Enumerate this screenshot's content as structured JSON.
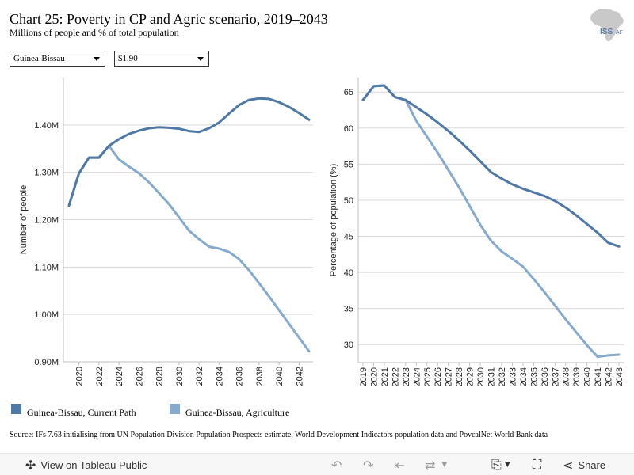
{
  "header": {
    "title": "Chart 25: Poverty in CP and Agric scenario, 2019–2043",
    "subtitle": "Millions of people and % of total population",
    "logo_text": "ISS",
    "logo_suffix": "AF"
  },
  "filters": {
    "country": "Guinea-Bissau",
    "poverty_line": "$1.90"
  },
  "colors": {
    "current_path": "#4e79a7",
    "agriculture": "#86aacd",
    "grid": "#d9d9d9"
  },
  "legend": {
    "current_path": "Guinea-Bissau, Current Path",
    "agriculture": "Guinea-Bissau, Agriculture"
  },
  "source": "Source: IFs 7.63 initialising from UN Population Division Population Prospects estimate, World Development Indicators population data and PovcalNet World Bank data",
  "toolbar": {
    "view_label": "View on Tableau Public",
    "share_label": "Share"
  },
  "chart_data": [
    {
      "type": "line",
      "ylabel": "Number of people",
      "ylim": [
        0.9,
        1.5
      ],
      "yticks": [
        0.9,
        1.0,
        1.1,
        1.2,
        1.3,
        1.4
      ],
      "ytick_labels": [
        "0.90M",
        "1.00M",
        "1.10M",
        "1.20M",
        "1.30M",
        "1.40M"
      ],
      "xticks": [
        "2020",
        "2022",
        "2024",
        "2026",
        "2028",
        "2030",
        "2032",
        "2034",
        "2036",
        "2038",
        "2040",
        "2042"
      ],
      "x": [
        2019,
        2020,
        2021,
        2022,
        2023,
        2024,
        2025,
        2026,
        2027,
        2028,
        2029,
        2030,
        2031,
        2032,
        2033,
        2034,
        2035,
        2036,
        2037,
        2038,
        2039,
        2040,
        2041,
        2042,
        2043
      ],
      "series": [
        {
          "name": "Guinea-Bissau, Current Path",
          "values": [
            1.23,
            1.298,
            1.331,
            1.331,
            1.356,
            1.37,
            1.381,
            1.388,
            1.393,
            1.395,
            1.394,
            1.392,
            1.387,
            1.385,
            1.393,
            1.405,
            1.424,
            1.442,
            1.453,
            1.456,
            1.455,
            1.448,
            1.438,
            1.425,
            1.411
          ]
        },
        {
          "name": "Guinea-Bissau, Agriculture",
          "values": [
            1.23,
            1.298,
            1.331,
            1.331,
            1.356,
            1.327,
            1.312,
            1.298,
            1.279,
            1.256,
            1.233,
            1.205,
            1.177,
            1.159,
            1.143,
            1.139,
            1.132,
            1.117,
            1.093,
            1.066,
            1.038,
            1.009,
            0.98,
            0.951,
            0.922
          ]
        }
      ]
    },
    {
      "type": "line",
      "ylabel": "Percentage of population (%)",
      "ylim": [
        27.5,
        67
      ],
      "yticks": [
        30,
        35,
        40,
        45,
        50,
        55,
        60,
        65
      ],
      "ytick_labels": [
        "30",
        "35",
        "40",
        "45",
        "50",
        "55",
        "60",
        "65"
      ],
      "xticks": [
        "2019",
        "2020",
        "2021",
        "2022",
        "2023",
        "2024",
        "2025",
        "2026",
        "2027",
        "2028",
        "2029",
        "2030",
        "2031",
        "2032",
        "2033",
        "2034",
        "2035",
        "2036",
        "2037",
        "2038",
        "2039",
        "2040",
        "2041",
        "2042",
        "2043"
      ],
      "x": [
        2019,
        2020,
        2021,
        2022,
        2023,
        2024,
        2025,
        2026,
        2027,
        2028,
        2029,
        2030,
        2031,
        2032,
        2033,
        2034,
        2035,
        2036,
        2037,
        2038,
        2039,
        2040,
        2041,
        2042,
        2043
      ],
      "series": [
        {
          "name": "Guinea-Bissau, Current Path",
          "values": [
            63.9,
            65.8,
            65.9,
            64.3,
            63.9,
            62.9,
            61.9,
            60.8,
            59.6,
            58.3,
            56.9,
            55.4,
            53.9,
            53.0,
            52.2,
            51.6,
            51.1,
            50.6,
            49.9,
            49.0,
            47.9,
            46.7,
            45.5,
            44.1,
            43.6
          ]
        },
        {
          "name": "Guinea-Bissau, Agriculture",
          "values": [
            63.9,
            65.8,
            65.9,
            64.3,
            63.9,
            61.0,
            58.8,
            56.6,
            54.2,
            51.8,
            49.2,
            46.6,
            44.4,
            42.9,
            41.9,
            40.8,
            39.1,
            37.3,
            35.4,
            33.5,
            31.7,
            29.9,
            28.3,
            28.5,
            28.6
          ]
        }
      ]
    }
  ]
}
